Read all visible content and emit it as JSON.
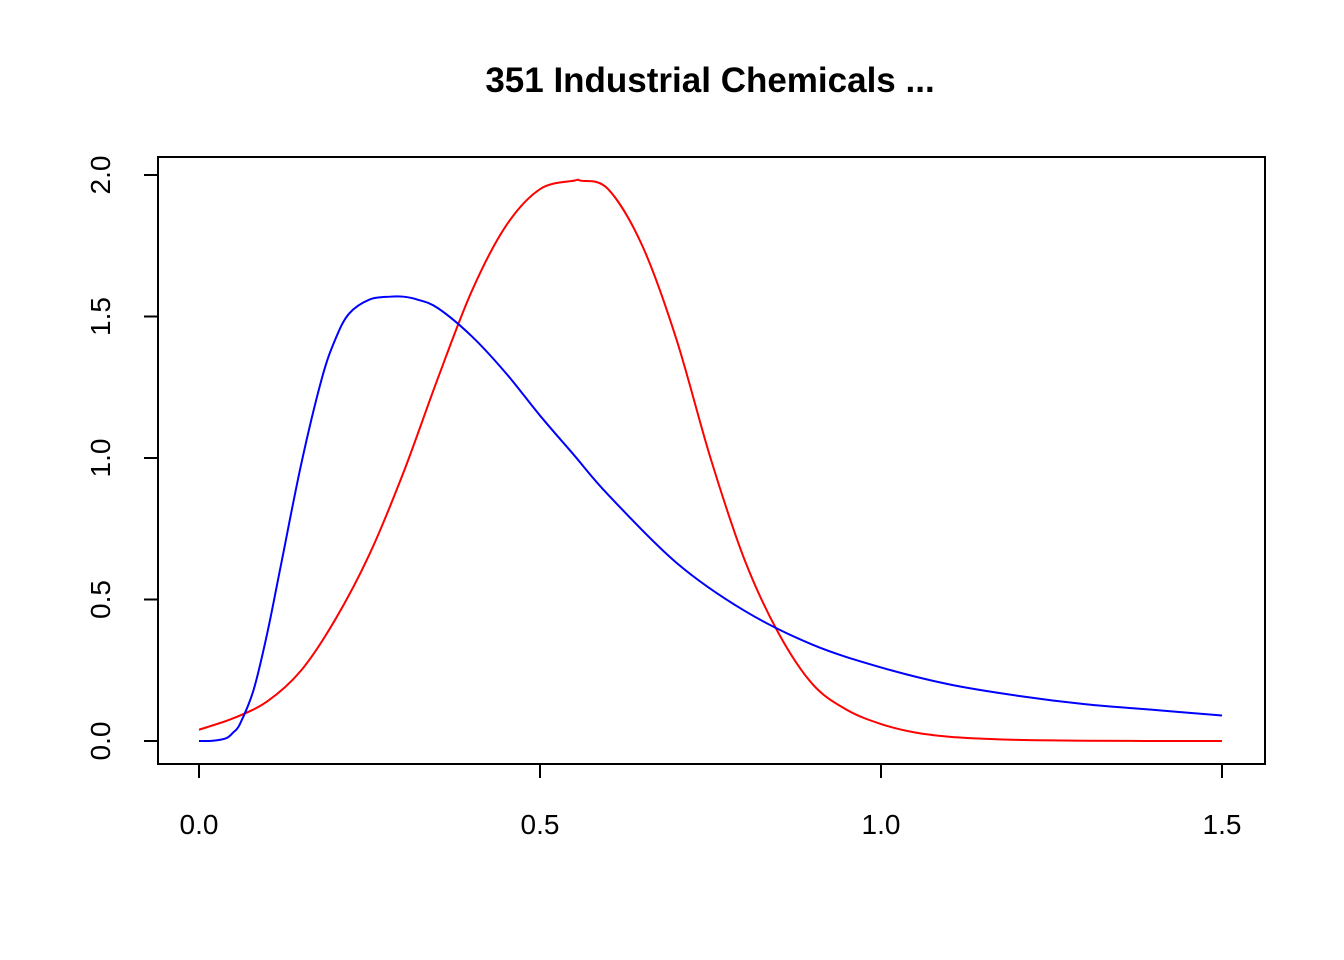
{
  "chart_data": {
    "type": "line",
    "title": "351 Industrial Chemicals ...",
    "xlabel": "",
    "ylabel": "",
    "xlim": [
      0.0,
      1.5
    ],
    "ylim": [
      0.0,
      2.0
    ],
    "grid": false,
    "x_ticks": [
      {
        "value": 0.0,
        "label": "0.0"
      },
      {
        "value": 0.5,
        "label": "0.5"
      },
      {
        "value": 1.0,
        "label": "1.0"
      },
      {
        "value": 1.5,
        "label": "1.5"
      }
    ],
    "y_ticks": [
      {
        "value": 0.0,
        "label": "0.0"
      },
      {
        "value": 0.5,
        "label": "0.5"
      },
      {
        "value": 1.0,
        "label": "1.0"
      },
      {
        "value": 1.5,
        "label": "1.5"
      },
      {
        "value": 2.0,
        "label": "2.0"
      }
    ],
    "series": [
      {
        "color": "#ff0000",
        "x": [
          0.0,
          0.05,
          0.1,
          0.15,
          0.2,
          0.25,
          0.3,
          0.35,
          0.4,
          0.45,
          0.5,
          0.55,
          0.56,
          0.6,
          0.65,
          0.7,
          0.75,
          0.8,
          0.85,
          0.9,
          0.95,
          1.0,
          1.05,
          1.1,
          1.15,
          1.2,
          1.25,
          1.3,
          1.4,
          1.5
        ],
        "y": [
          0.04,
          0.08,
          0.14,
          0.25,
          0.43,
          0.66,
          0.95,
          1.28,
          1.59,
          1.82,
          1.95,
          1.98,
          1.98,
          1.95,
          1.75,
          1.42,
          1.0,
          0.64,
          0.38,
          0.2,
          0.11,
          0.06,
          0.03,
          0.015,
          0.008,
          0.004,
          0.002,
          0.001,
          0.0,
          0.0
        ]
      },
      {
        "color": "#0000ff",
        "x": [
          0.0,
          0.02,
          0.04,
          0.05,
          0.06,
          0.08,
          0.1,
          0.12,
          0.15,
          0.18,
          0.2,
          0.22,
          0.25,
          0.28,
          0.3,
          0.32,
          0.35,
          0.4,
          0.45,
          0.5,
          0.55,
          0.6,
          0.7,
          0.8,
          0.9,
          1.0,
          1.1,
          1.2,
          1.3,
          1.4,
          1.5
        ],
        "y": [
          0.0,
          0.001,
          0.01,
          0.03,
          0.06,
          0.18,
          0.38,
          0.62,
          0.98,
          1.28,
          1.42,
          1.51,
          1.56,
          1.57,
          1.57,
          1.56,
          1.53,
          1.43,
          1.3,
          1.15,
          1.01,
          0.87,
          0.63,
          0.46,
          0.34,
          0.26,
          0.2,
          0.16,
          0.13,
          0.11,
          0.09
        ]
      }
    ]
  }
}
